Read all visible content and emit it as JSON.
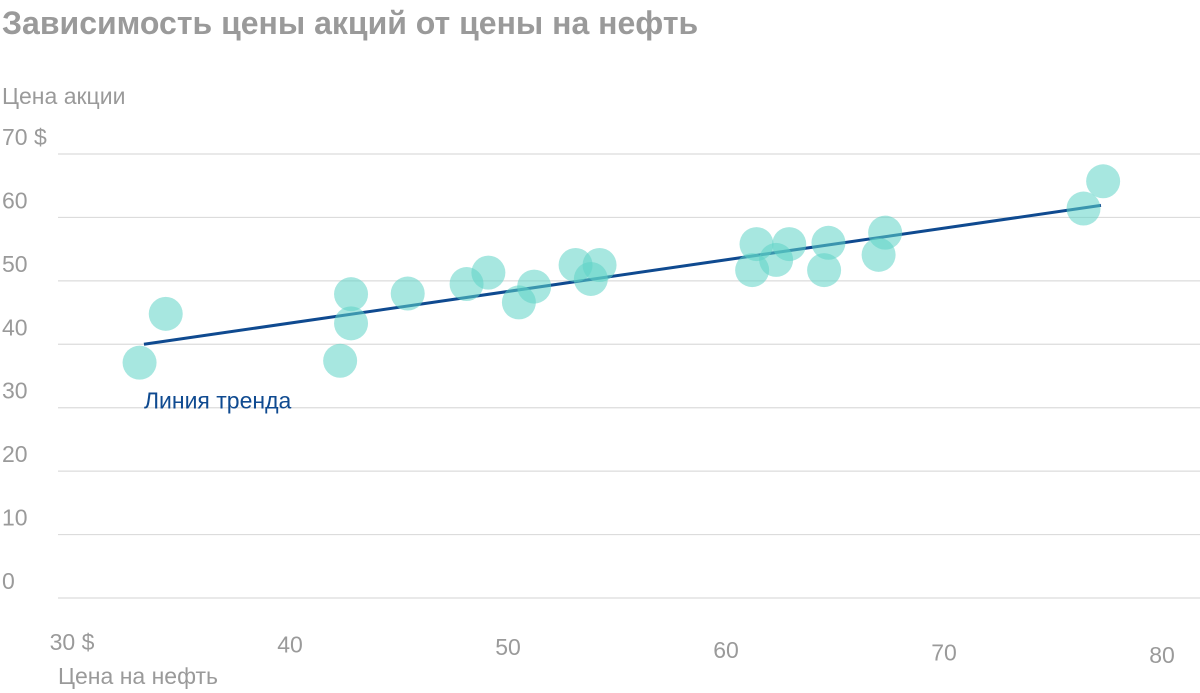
{
  "chart_data": {
    "type": "scatter",
    "title": "Зависимость цены акций от цены на нефть",
    "ylabel": "Цена акции",
    "xlabel": "Цена на нефть",
    "y_ticks": [
      "0",
      "10",
      "20",
      "30",
      "40",
      "50",
      "60",
      "70 $"
    ],
    "x_ticks": [
      "30 $",
      "40",
      "50",
      "60",
      "70",
      "80"
    ],
    "xlim": [
      30,
      80
    ],
    "ylim": [
      0,
      70
    ],
    "grid": true,
    "points": [
      {
        "x": 33.1,
        "y": 37.1
      },
      {
        "x": 34.3,
        "y": 44.8
      },
      {
        "x": 42.3,
        "y": 37.4
      },
      {
        "x": 42.8,
        "y": 43.3
      },
      {
        "x": 42.8,
        "y": 47.9
      },
      {
        "x": 45.4,
        "y": 48.0
      },
      {
        "x": 48.1,
        "y": 49.5
      },
      {
        "x": 49.1,
        "y": 51.3
      },
      {
        "x": 50.5,
        "y": 46.6
      },
      {
        "x": 51.2,
        "y": 49.1
      },
      {
        "x": 53.1,
        "y": 52.5
      },
      {
        "x": 53.8,
        "y": 50.3
      },
      {
        "x": 54.2,
        "y": 52.5
      },
      {
        "x": 61.2,
        "y": 51.7
      },
      {
        "x": 61.4,
        "y": 55.8
      },
      {
        "x": 62.3,
        "y": 53.3
      },
      {
        "x": 62.9,
        "y": 55.8
      },
      {
        "x": 64.5,
        "y": 51.7
      },
      {
        "x": 64.7,
        "y": 56.0
      },
      {
        "x": 67.0,
        "y": 54.1
      },
      {
        "x": 67.3,
        "y": 57.6
      },
      {
        "x": 76.4,
        "y": 61.4
      },
      {
        "x": 77.3,
        "y": 65.7
      }
    ],
    "trend": {
      "label": "Линия тренда",
      "x": [
        33.3,
        77.2
      ],
      "y": [
        40.0,
        61.9
      ]
    },
    "colors": {
      "points": "#5fd3c6",
      "trend": "#0f4a90",
      "text": "#9a9a9a",
      "grid": "#dcdcdc"
    }
  }
}
